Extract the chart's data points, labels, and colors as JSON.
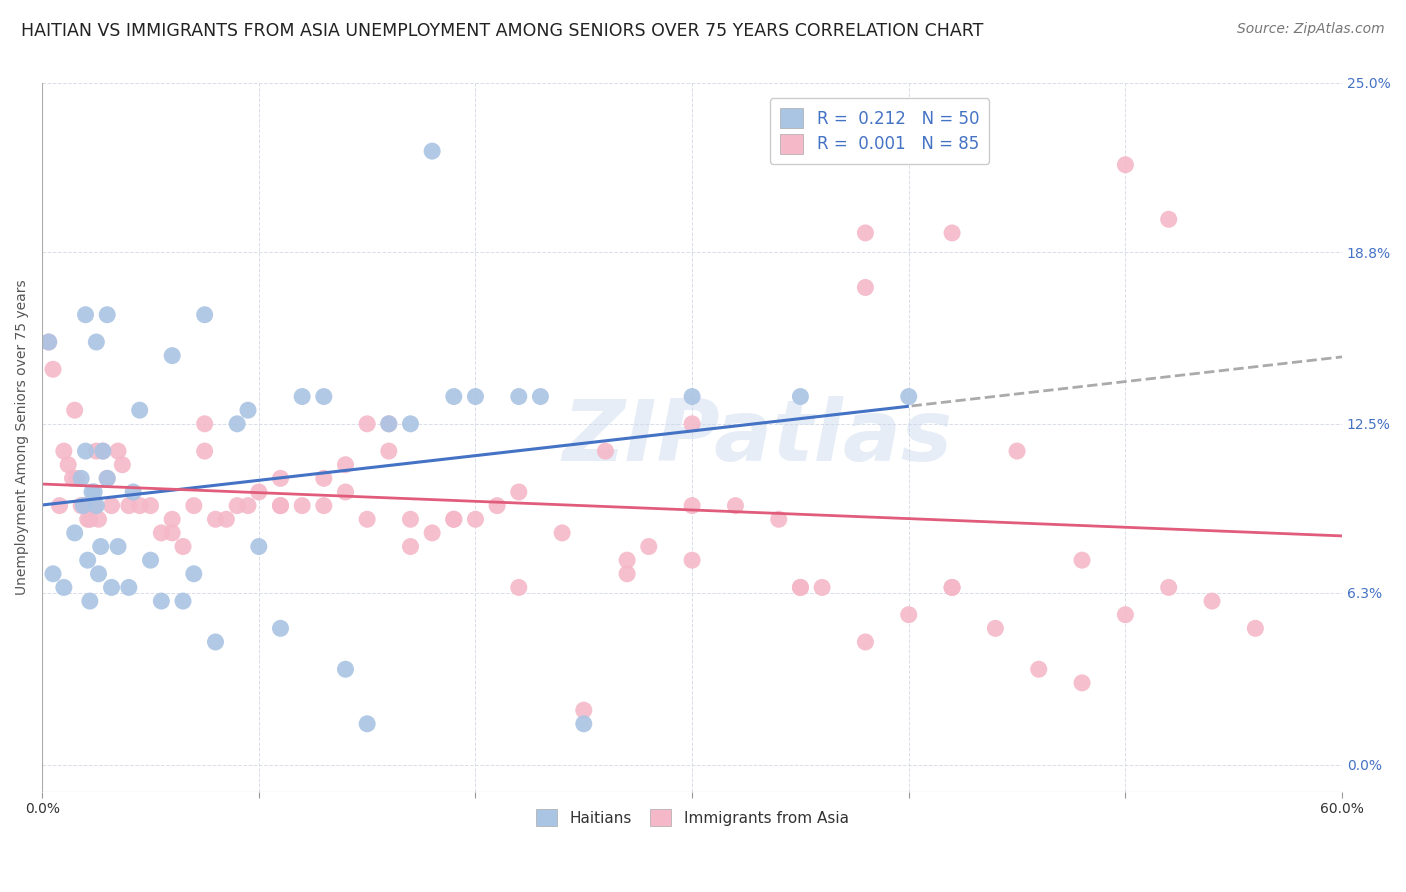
{
  "title": "HAITIAN VS IMMIGRANTS FROM ASIA UNEMPLOYMENT AMONG SENIORS OVER 75 YEARS CORRELATION CHART",
  "source": "Source: ZipAtlas.com",
  "ylabel": "Unemployment Among Seniors over 75 years",
  "xlim": [
    0,
    60
  ],
  "ylim": [
    -1,
    25
  ],
  "ytick_vals": [
    0,
    6.3,
    12.5,
    18.8,
    25.0
  ],
  "ytick_labels": [
    "0.0%",
    "6.3%",
    "12.5%",
    "18.8%",
    "25.0%"
  ],
  "watermark": "ZIPatlas",
  "bg_color": "#ffffff",
  "scatter_blue": "#aac4e4",
  "scatter_pink": "#f4b8c8",
  "line_blue": "#4472c4",
  "line_pink": "#e05c7a",
  "line_dashed_color": "#aaaaaa",
  "grid_color": "#d8dde8",
  "title_fontsize": 12.5,
  "axis_label_fontsize": 10,
  "tick_fontsize": 10,
  "source_fontsize": 10,
  "haitians_x": [
    0.3,
    0.5,
    1.0,
    1.5,
    1.8,
    1.9,
    2.0,
    2.1,
    2.2,
    2.3,
    2.4,
    2.5,
    2.6,
    2.7,
    2.8,
    3.0,
    3.2,
    3.5,
    4.2,
    4.5,
    5.5,
    6.0,
    7.0,
    8.0,
    9.0,
    10.0,
    11.0,
    12.0,
    14.0,
    15.0,
    16.0,
    18.0,
    20.0,
    22.0,
    25.0,
    30.0,
    35.0,
    40.0,
    2.0,
    2.5,
    3.0,
    4.0,
    5.0,
    6.5,
    7.5,
    9.5,
    13.0,
    17.0,
    19.0,
    23.0
  ],
  "haitians_y": [
    15.5,
    7.0,
    6.5,
    8.5,
    10.5,
    9.5,
    11.5,
    7.5,
    6.0,
    10.0,
    10.0,
    9.5,
    7.0,
    8.0,
    11.5,
    10.5,
    6.5,
    8.0,
    10.0,
    13.0,
    6.0,
    15.0,
    7.0,
    4.5,
    12.5,
    8.0,
    5.0,
    13.5,
    3.5,
    1.5,
    12.5,
    22.5,
    13.5,
    13.5,
    1.5,
    13.5,
    13.5,
    13.5,
    16.5,
    15.5,
    16.5,
    6.5,
    7.5,
    6.0,
    16.5,
    13.0,
    13.5,
    12.5,
    13.5,
    13.5
  ],
  "asia_x": [
    0.3,
    0.5,
    0.8,
    1.0,
    1.2,
    1.4,
    1.6,
    1.8,
    2.0,
    2.2,
    2.4,
    2.6,
    2.8,
    3.0,
    3.2,
    3.5,
    4.0,
    4.5,
    5.0,
    5.5,
    6.0,
    7.0,
    8.0,
    9.0,
    10.0,
    11.0,
    12.0,
    13.0,
    14.0,
    15.0,
    16.0,
    17.0,
    18.0,
    19.0,
    20.0,
    22.0,
    24.0,
    26.0,
    28.0,
    30.0,
    32.0,
    34.0,
    36.0,
    38.0,
    40.0,
    42.0,
    44.0,
    46.0,
    48.0,
    50.0,
    52.0,
    54.0,
    56.0,
    1.5,
    2.1,
    2.5,
    3.7,
    6.5,
    7.5,
    8.5,
    11.0,
    13.0,
    15.0,
    17.0,
    21.0,
    25.0,
    27.0,
    30.0,
    35.0,
    38.0,
    42.0,
    45.0,
    48.0,
    50.0,
    52.0,
    42.0,
    38.0,
    35.0,
    30.0,
    27.0,
    22.0,
    19.0,
    16.0,
    14.0,
    11.0,
    9.5,
    7.5,
    6.0
  ],
  "asia_y": [
    15.5,
    14.5,
    9.5,
    11.5,
    11.0,
    10.5,
    10.5,
    9.5,
    9.5,
    9.0,
    9.5,
    9.0,
    11.5,
    10.5,
    9.5,
    11.5,
    9.5,
    9.5,
    9.5,
    8.5,
    9.0,
    9.5,
    9.0,
    9.5,
    10.0,
    10.5,
    9.5,
    10.5,
    10.0,
    9.0,
    11.5,
    9.0,
    8.5,
    9.0,
    9.0,
    10.0,
    8.5,
    11.5,
    8.0,
    9.5,
    9.5,
    9.0,
    6.5,
    4.5,
    5.5,
    6.5,
    5.0,
    3.5,
    3.0,
    5.5,
    6.5,
    6.0,
    5.0,
    13.0,
    9.0,
    11.5,
    11.0,
    8.0,
    11.5,
    9.0,
    9.5,
    9.5,
    12.5,
    8.0,
    9.5,
    2.0,
    7.5,
    7.5,
    6.5,
    19.5,
    19.5,
    11.5,
    7.5,
    22.0,
    20.0,
    6.5,
    17.5,
    6.5,
    12.5,
    7.0,
    6.5,
    9.0,
    12.5,
    11.0,
    9.5,
    9.5,
    12.5,
    8.5
  ]
}
